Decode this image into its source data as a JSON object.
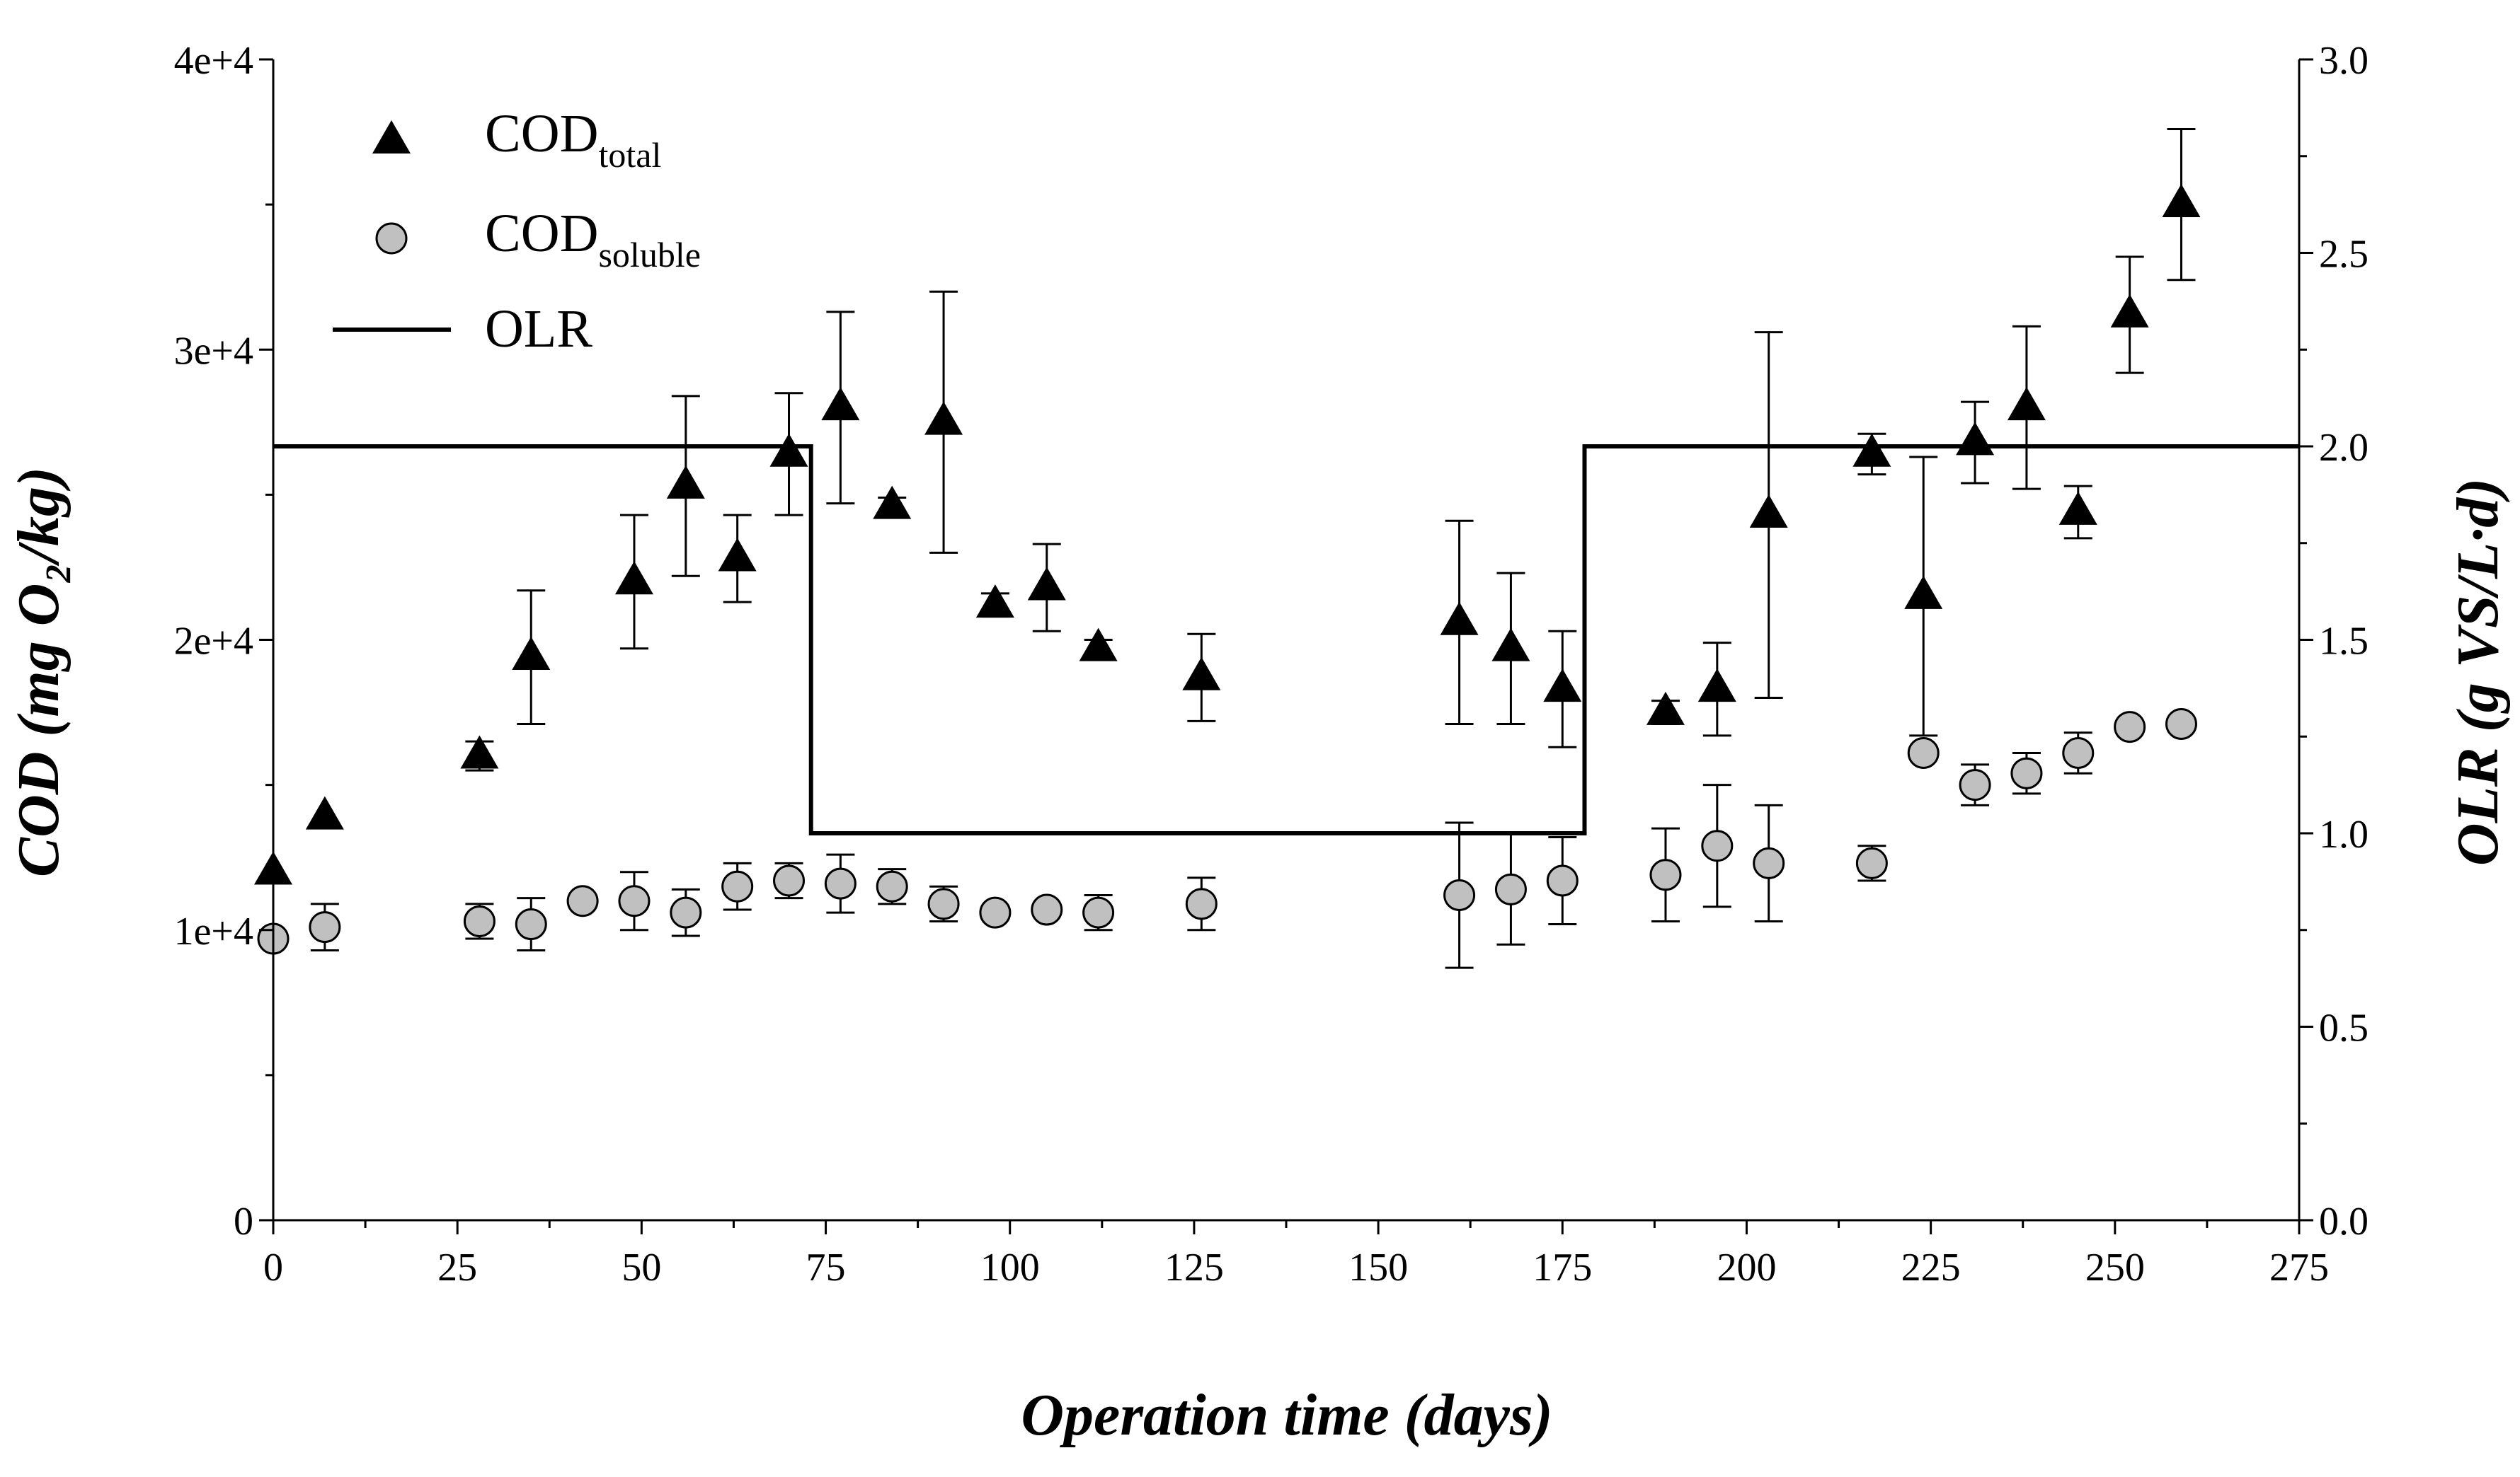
{
  "chart_data": {
    "type": "scatter",
    "title": "",
    "xlabel": "Operation time (days)",
    "ylabel_left": "COD (mg O₂/kg)",
    "ylabel_right": "OLR (g VS/L·d)",
    "xlim": [
      0,
      275
    ],
    "ylim_left": [
      0,
      40000
    ],
    "ylim_right": [
      0.0,
      3.0
    ],
    "grid": false,
    "legend_position": "top-left",
    "x_ticks": [
      "0",
      "25",
      "50",
      "75",
      "100",
      "125",
      "150",
      "175",
      "200",
      "225",
      "250",
      "275"
    ],
    "y_ticks_left": [
      "0",
      "1e+4",
      "2e+4",
      "3e+4",
      "4e+4"
    ],
    "y_ticks_right": [
      "0.0",
      "0.5",
      "1.0",
      "1.5",
      "2.0",
      "2.5",
      "3.0"
    ],
    "legend": {
      "cod_total": {
        "main": "COD",
        "sub": "total"
      },
      "cod_soluble": {
        "main": "COD",
        "sub": "soluble"
      },
      "olr": {
        "main": "OLR"
      }
    },
    "series": [
      {
        "name": "CODtotal",
        "marker": "triangle",
        "color": "#000000",
        "x": [
          0,
          7,
          28,
          35,
          49,
          56,
          63,
          70,
          77,
          84,
          91,
          98,
          105,
          112,
          126,
          161,
          168,
          175,
          189,
          196,
          203,
          217,
          224,
          231,
          238,
          245,
          252,
          259
        ],
        "y": [
          12000,
          13900,
          16000,
          19400,
          22000,
          25300,
          22800,
          26400,
          28000,
          24600,
          27500,
          21200,
          21800,
          19700,
          18700,
          20600,
          19700,
          18300,
          17500,
          18300,
          24300,
          26400,
          21500,
          26800,
          28000,
          24400,
          31200,
          35000
        ],
        "error": [
          0,
          0,
          500,
          2300,
          2300,
          3100,
          1500,
          2100,
          3300,
          300,
          4500,
          400,
          1500,
          300,
          1500,
          3500,
          2600,
          2000,
          400,
          1600,
          6300,
          700,
          4800,
          1400,
          2800,
          900,
          2000,
          2600
        ]
      },
      {
        "name": "CODsoluble",
        "marker": "circle",
        "color": "#c0c0c0",
        "x": [
          0,
          7,
          28,
          35,
          42,
          49,
          56,
          63,
          70,
          77,
          84,
          91,
          98,
          105,
          112,
          126,
          161,
          168,
          175,
          189,
          196,
          203,
          217,
          224,
          231,
          238,
          245,
          252,
          259
        ],
        "y": [
          9700,
          10100,
          10300,
          10200,
          11000,
          11000,
          10600,
          11500,
          11700,
          11600,
          11500,
          10900,
          10600,
          10700,
          10600,
          10900,
          11200,
          11400,
          11700,
          11900,
          12900,
          12300,
          12300,
          16100,
          15000,
          15400,
          16100,
          17000,
          17100
        ],
        "error": [
          0,
          800,
          600,
          900,
          0,
          1000,
          800,
          800,
          600,
          1000,
          600,
          600,
          0,
          0,
          600,
          900,
          2500,
          1900,
          1500,
          1600,
          2100,
          2000,
          600,
          0,
          700,
          700,
          700,
          0,
          0
        ]
      },
      {
        "name": "OLR",
        "line": "step",
        "axis": "right",
        "color": "#000000",
        "x": [
          0,
          73,
          73,
          178,
          178,
          275
        ],
        "y": [
          2.0,
          2.0,
          1.0,
          1.0,
          2.0,
          2.0
        ]
      }
    ]
  }
}
